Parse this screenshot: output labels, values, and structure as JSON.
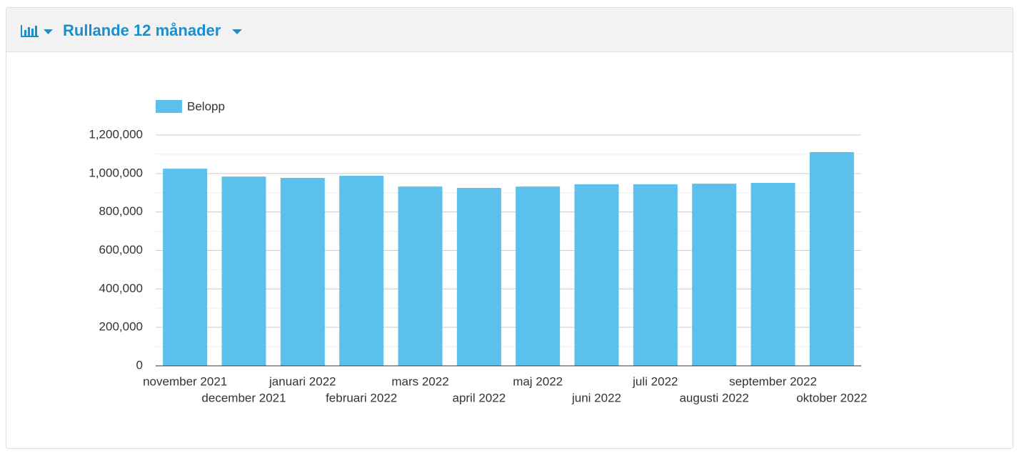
{
  "chart_data": {
    "type": "bar",
    "title": "Rullande 12 månader",
    "categories": [
      "november 2021",
      "december 2021",
      "januari 2022",
      "februari 2022",
      "mars 2022",
      "april 2022",
      "maj 2022",
      "juni 2022",
      "juli 2022",
      "augusti 2022",
      "september 2022",
      "oktober 2022"
    ],
    "series": [
      {
        "name": "Belopp",
        "color": "#5bc0ec",
        "values": [
          1025000,
          984000,
          977000,
          988000,
          932000,
          925000,
          932000,
          944000,
          944000,
          947000,
          951000,
          1111000
        ]
      }
    ],
    "ylim": [
      0,
      1200000
    ],
    "yticks": [
      0,
      {
        "value": 200000,
        "label": "200,000"
      },
      {
        "value": 400000,
        "label": "400,000"
      },
      {
        "value": 600000,
        "label": "600,000"
      },
      {
        "value": 800000,
        "label": "800,000"
      },
      {
        "value": 1000000,
        "label": "1,000,000"
      },
      {
        "value": 1200000,
        "label": "1,200,000"
      }
    ],
    "grid": true,
    "minor_grid": true
  }
}
